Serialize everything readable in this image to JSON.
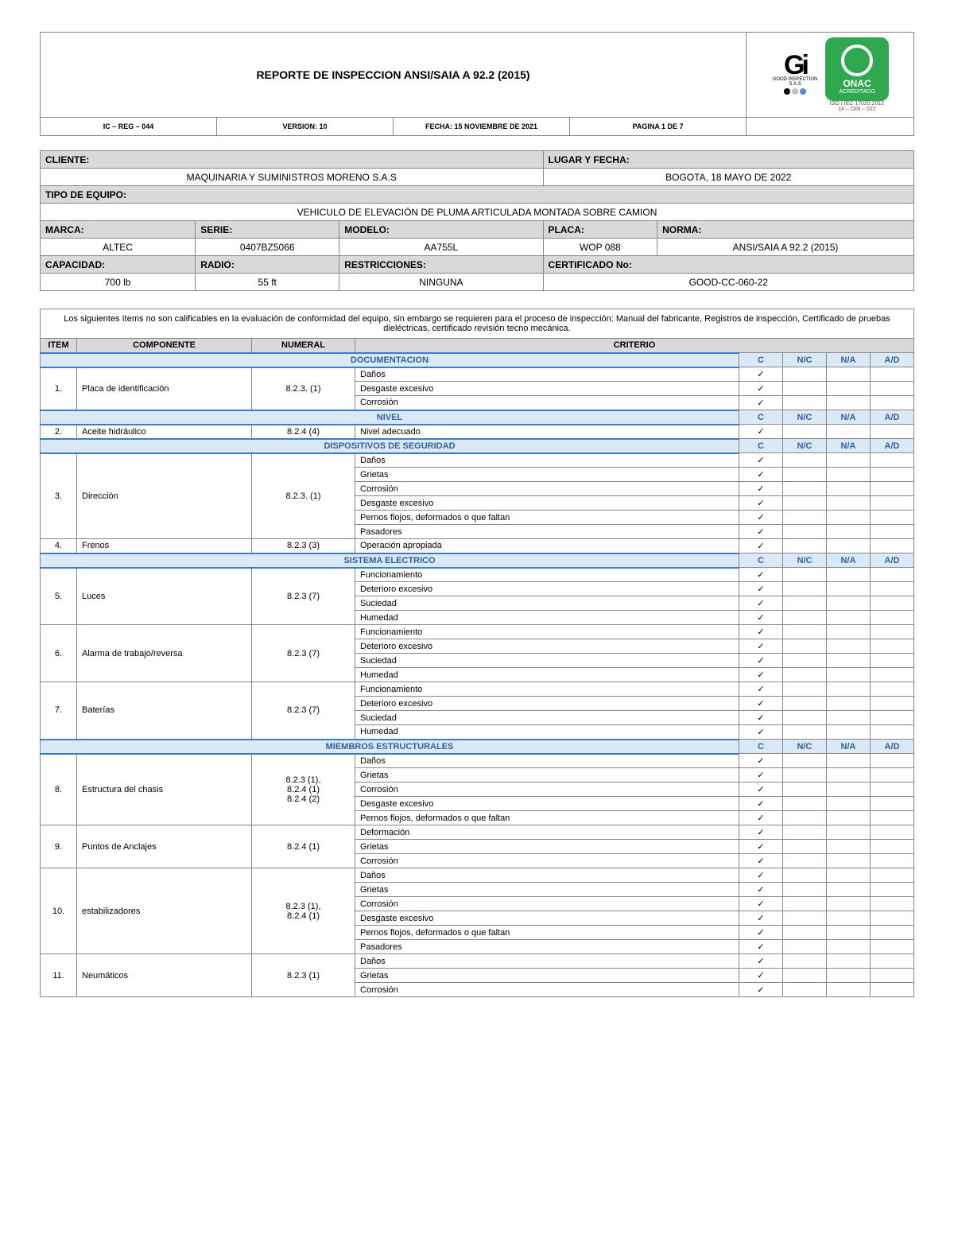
{
  "header": {
    "title": "REPORTE DE INSPECCION ANSI/SAIA A 92.2 (2015)",
    "code": "IC – REG – 044",
    "version": "VERSION: 10",
    "date": "FECHA: 15 NOVIEMBRE DE 2021",
    "page": "PAGINA 1 DE 7",
    "gi_caption": "GOOD INSPECTION S.A.S",
    "onac_label": "ONAC",
    "onac_sub": "ACREDITADO",
    "iso_line1": "ISO / IEC 17020:2012",
    "iso_line2": "14 – OIN – 022"
  },
  "info": {
    "cliente_lab": "CLIENTE:",
    "cliente_val": "MAQUINARIA Y SUMINISTROS MORENO S.A.S",
    "lugar_lab": "LUGAR Y FECHA:",
    "lugar_val": "BOGOTA, 18 MAYO DE 2022",
    "tipo_lab": "TIPO DE EQUIPO:",
    "tipo_val": "VEHICULO DE ELEVACIÓN DE PLUMA ARTICULADA MONTADA SOBRE CAMION",
    "marca_lab": "MARCA:",
    "marca_val": "ALTEC",
    "serie_lab": "SERIE:",
    "serie_val": "0407BZ5066",
    "modelo_lab": "MODELO:",
    "modelo_val": "AA755L",
    "placa_lab": "PLACA:",
    "placa_val": "WOP 088",
    "norma_lab": "NORMA:",
    "norma_val": "ANSI/SAIA A 92.2 (2015)",
    "cap_lab": "CAPACIDAD:",
    "cap_val": "700 lb",
    "radio_lab": "RADIO:",
    "radio_val": "55 ft",
    "rest_lab": "RESTRICCIONES:",
    "rest_val": "NINGUNA",
    "cert_lab": "CERTIFICADO No:",
    "cert_val": "GOOD-CC-060-22"
  },
  "note": "Los siguientes ítems no son calificables en la evaluación de conformidad del equipo, sin embargo se requieren para el proceso de inspección: Manual del fabricante, Registros de inspección, Certificado de pruebas dieléctricas, certificado revisión tecno mecánica.",
  "cols": {
    "item": "ITEM",
    "componente": "COMPONENTE",
    "numeral": "NUMERAL",
    "criterio": "CRITERIO",
    "c": "C",
    "nc": "N/C",
    "na": "N/A",
    "ad": "A/D"
  },
  "check": "✓",
  "sections": [
    {
      "title": "DOCUMENTACION",
      "rows": [
        {
          "item": "1.",
          "comp": "Placa de identificación",
          "num": "8.2.3. (1)",
          "crits": [
            "Daños",
            "Desgaste excesivo",
            "Corrosión"
          ]
        }
      ]
    },
    {
      "title": "NIVEL",
      "rows": [
        {
          "item": "2.",
          "comp": "Aceite hidráulico",
          "num": "8.2.4 (4)",
          "crits": [
            "Nivel adecuado"
          ]
        }
      ]
    },
    {
      "title": "DISPOSITIVOS DE SEGURIDAD",
      "rows": [
        {
          "item": "3.",
          "comp": "Dirección",
          "num": "8.2.3. (1)",
          "crits": [
            "Daños",
            "Grietas",
            "Corrosión",
            "Desgaste excesivo",
            "Pernos flojos, deformados o que faltan",
            "Pasadores"
          ]
        },
        {
          "item": "4.",
          "comp": "Frenos",
          "num": "8.2.3 (3)",
          "crits": [
            "Operación apropiada"
          ]
        }
      ]
    },
    {
      "title": "SISTEMA ELECTRICO",
      "rows": [
        {
          "item": "5.",
          "comp": "Luces",
          "num": "8.2.3 (7)",
          "crits": [
            "Funcionamiento",
            "Deterioro excesivo",
            "Suciedad",
            "Humedad"
          ]
        },
        {
          "item": "6.",
          "comp": "Alarma de trabajo/reversa",
          "num": "8.2.3 (7)",
          "crits": [
            "Funcionamiento",
            "Deterioro excesivo",
            "Suciedad",
            "Humedad"
          ]
        },
        {
          "item": "7.",
          "comp": "Baterías",
          "num": "8.2.3 (7)",
          "crits": [
            "Funcionamiento",
            "Deterioro excesivo",
            "Suciedad",
            "Humedad"
          ]
        }
      ]
    },
    {
      "title": "MIEMBROS ESTRUCTURALES",
      "rows": [
        {
          "item": "8.",
          "comp": "Estructura del chasis",
          "num": "8.2.3 (1),\n8.2.4 (1)\n8.2.4 (2)",
          "crits": [
            "Daños",
            "Grietas",
            "Corrosión",
            "Desgaste excesivo",
            "Pernos flojos, deformados o que faltan"
          ]
        },
        {
          "item": "9.",
          "comp": "Puntos de Anclajes",
          "num": "8.2.4 (1)",
          "crits": [
            "Deformación",
            "Grietas",
            "Corrosión"
          ]
        },
        {
          "item": "10.",
          "comp": "estabilizadores",
          "num": "8.2.3 (1),\n8.2.4 (1)",
          "crits": [
            "Daños",
            "Grietas",
            "Corrosión",
            "Desgaste excesivo",
            "Pernos flojos, deformados o que faltan",
            "Pasadores"
          ]
        },
        {
          "item": "11.",
          "comp": "Neumáticos",
          "num": "8.2.3 (1)",
          "crits": [
            "Daños",
            "Grietas",
            "Corrosión"
          ]
        }
      ]
    }
  ],
  "colors": {
    "dot1": "#000000",
    "dot2": "#c0c0c0",
    "dot3": "#4a90e2",
    "onac_bg": "#2fa84f",
    "section_bg": "#dbe9f6",
    "section_fg": "#2e5fa1",
    "section_border": "#3d7cc9",
    "label_bg": "#d9d9d9"
  }
}
